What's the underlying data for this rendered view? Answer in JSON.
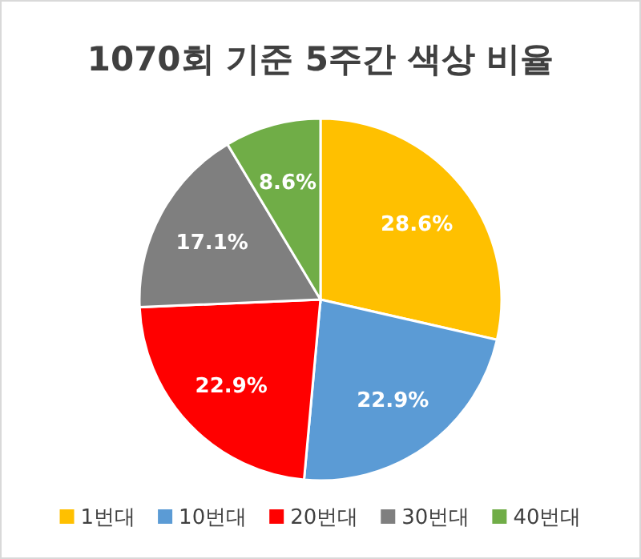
{
  "chart_data": {
    "type": "pie",
    "title": "1070회 기준 5주간 색상 비율",
    "categories": [
      "1번대",
      "10번대",
      "20번대",
      "30번대",
      "40번대"
    ],
    "values": [
      28.6,
      22.9,
      22.9,
      17.1,
      8.6
    ],
    "colors": [
      "#ffc000",
      "#5b9bd5",
      "#ff0000",
      "#7f7f7f",
      "#70ad47"
    ],
    "value_labels": [
      "28.6%",
      "22.9%",
      "22.9%",
      "17.1%",
      "8.6%"
    ],
    "legend": "bottom"
  }
}
